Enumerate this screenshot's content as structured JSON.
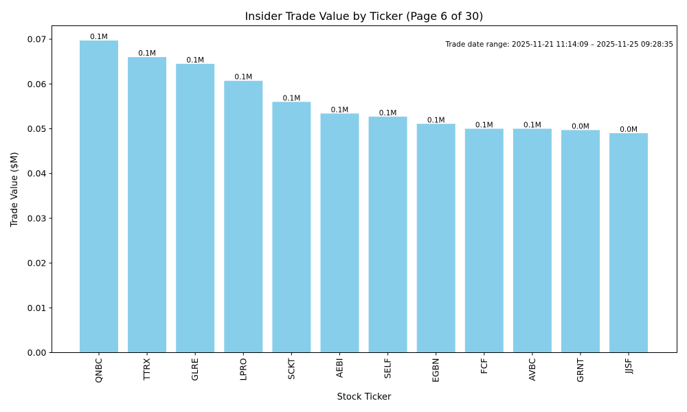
{
  "chart_data": {
    "type": "bar",
    "title": "Insider Trade Value by Ticker (Page 6 of 30)",
    "xlabel": "Stock Ticker",
    "ylabel": "Trade Value ($M)",
    "ylim": [
      0,
      0.073
    ],
    "yticks": [
      0.0,
      0.01,
      0.02,
      0.03,
      0.04,
      0.05,
      0.06,
      0.07
    ],
    "ytick_labels": [
      "0.00",
      "0.01",
      "0.02",
      "0.03",
      "0.04",
      "0.05",
      "0.06",
      "0.07"
    ],
    "categories": [
      "QNBC",
      "TTRX",
      "GLRE",
      "LPRO",
      "SCKT",
      "AEBI",
      "SELF",
      "EGBN",
      "FCF",
      "AVBC",
      "GRNT",
      "JJSF"
    ],
    "values": [
      0.0697,
      0.066,
      0.0645,
      0.0607,
      0.056,
      0.0534,
      0.0527,
      0.0511,
      0.05,
      0.05,
      0.0497,
      0.049
    ],
    "data_labels": [
      "0.1M",
      "0.1M",
      "0.1M",
      "0.1M",
      "0.1M",
      "0.1M",
      "0.1M",
      "0.1M",
      "0.1M",
      "0.1M",
      "0.0M",
      "0.0M"
    ],
    "bar_color": "#87ceeb",
    "annotation": "Trade date range: 2025-11-21 11:14:09 – 2025-11-25 09:28:35",
    "grid": false
  }
}
